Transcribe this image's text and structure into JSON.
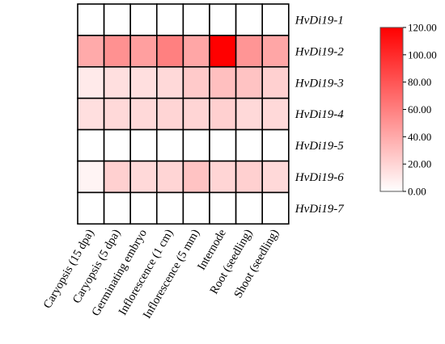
{
  "chart_data": {
    "type": "heatmap",
    "columns": [
      "Caryopsis (15 dpa)",
      "Caryopsis (5 dpa)",
      "Germinating embryo",
      "Inflorescence (1 cm)",
      "Inflorescence (5 mm)",
      "Internode",
      "Root (seedling)",
      "Shoot (seedling)"
    ],
    "rows": [
      "HvDi19-1",
      "HvDi19-2",
      "HvDi19-3",
      "HvDi19-4",
      "HvDi19-5",
      "HvDi19-6",
      "HvDi19-7"
    ],
    "values": [
      [
        0,
        0,
        0,
        0,
        0,
        0,
        0,
        0
      ],
      [
        40,
        52,
        45,
        60,
        42,
        120,
        50,
        42
      ],
      [
        10,
        15,
        15,
        18,
        25,
        30,
        28,
        22
      ],
      [
        15,
        18,
        18,
        20,
        20,
        22,
        18,
        18
      ],
      [
        0,
        0,
        0,
        0,
        0,
        0,
        0,
        0
      ],
      [
        5,
        22,
        18,
        20,
        28,
        20,
        22,
        18
      ],
      [
        0,
        0,
        0,
        0,
        0,
        0,
        0,
        0
      ]
    ],
    "colorbar": {
      "min": 0,
      "max": 120,
      "ticks": [
        "0.00",
        "20.00",
        "40.00",
        "60.00",
        "80.00",
        "100.00",
        "120.00"
      ],
      "low_color": "#ffffff",
      "high_color": "#ff0000"
    }
  }
}
